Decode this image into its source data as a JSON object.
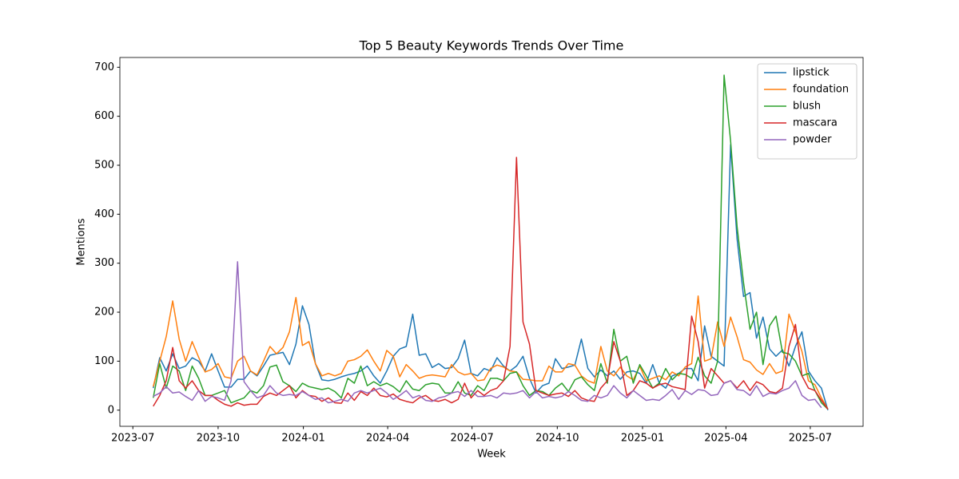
{
  "chart_data": {
    "type": "line",
    "title": "Top 5 Beauty Keywords Trends Over Time",
    "x_label": "Week",
    "y_label": "Mentions",
    "x": [
      "2023-07-23",
      "2023-07-30",
      "2023-08-06",
      "2023-08-13",
      "2023-08-20",
      "2023-08-27",
      "2023-09-03",
      "2023-09-10",
      "2023-09-17",
      "2023-09-24",
      "2023-10-01",
      "2023-10-08",
      "2023-10-15",
      "2023-10-22",
      "2023-10-29",
      "2023-11-05",
      "2023-11-12",
      "2023-11-19",
      "2023-11-26",
      "2023-12-03",
      "2023-12-10",
      "2023-12-17",
      "2023-12-24",
      "2023-12-31",
      "2024-01-07",
      "2024-01-14",
      "2024-01-21",
      "2024-01-28",
      "2024-02-04",
      "2024-02-11",
      "2024-02-18",
      "2024-02-25",
      "2024-03-03",
      "2024-03-10",
      "2024-03-17",
      "2024-03-24",
      "2024-03-31",
      "2024-04-07",
      "2024-04-14",
      "2024-04-21",
      "2024-04-28",
      "2024-05-05",
      "2024-05-12",
      "2024-05-19",
      "2024-05-26",
      "2024-06-02",
      "2024-06-09",
      "2024-06-16",
      "2024-06-23",
      "2024-06-30",
      "2024-07-07",
      "2024-07-14",
      "2024-07-21",
      "2024-07-28",
      "2024-08-04",
      "2024-08-11",
      "2024-08-18",
      "2024-08-25",
      "2024-09-01",
      "2024-09-08",
      "2024-09-15",
      "2024-09-22",
      "2024-09-29",
      "2024-10-06",
      "2024-10-13",
      "2024-10-20",
      "2024-10-27",
      "2024-11-03",
      "2024-11-10",
      "2024-11-17",
      "2024-11-24",
      "2024-12-01",
      "2024-12-08",
      "2024-12-15",
      "2024-12-22",
      "2024-12-29",
      "2025-01-05",
      "2025-01-12",
      "2025-01-19",
      "2025-01-26",
      "2025-02-02",
      "2025-02-09",
      "2025-02-16",
      "2025-02-23",
      "2025-03-02",
      "2025-03-09",
      "2025-03-16",
      "2025-03-23",
      "2025-03-30",
      "2025-04-06",
      "2025-04-13",
      "2025-04-20",
      "2025-04-27",
      "2025-05-04",
      "2025-05-11",
      "2025-05-18",
      "2025-05-25",
      "2025-06-01",
      "2025-06-08",
      "2025-06-15",
      "2025-06-22",
      "2025-06-29",
      "2025-07-06",
      "2025-07-13",
      "2025-07-20"
    ],
    "series": [
      {
        "name": "lipstick",
        "color": "#1f77b4",
        "values": [
          45,
          107,
          80,
          115,
          85,
          90,
          107,
          100,
          80,
          115,
          80,
          47,
          47,
          63,
          63,
          80,
          70,
          90,
          112,
          115,
          118,
          93,
          135,
          213,
          175,
          95,
          62,
          60,
          63,
          68,
          72,
          75,
          80,
          90,
          70,
          55,
          80,
          110,
          125,
          130,
          196,
          112,
          115,
          87,
          95,
          85,
          87,
          105,
          143,
          75,
          70,
          85,
          80,
          107,
          90,
          80,
          90,
          110,
          65,
          35,
          50,
          55,
          105,
          85,
          88,
          92,
          145,
          85,
          68,
          82,
          70,
          80,
          63,
          78,
          80,
          75,
          55,
          93,
          55,
          45,
          70,
          75,
          85,
          85,
          60,
          172,
          110,
          100,
          90,
          542,
          350,
          232,
          240,
          147,
          190,
          125,
          110,
          123,
          90,
          130,
          160,
          80,
          60,
          45,
          0
        ]
      },
      {
        "name": "foundation",
        "color": "#ff7f0e",
        "values": [
          48,
          100,
          150,
          223,
          145,
          100,
          140,
          108,
          78,
          83,
          95,
          68,
          65,
          100,
          110,
          80,
          72,
          100,
          130,
          115,
          128,
          160,
          230,
          132,
          140,
          95,
          70,
          75,
          70,
          75,
          100,
          103,
          110,
          123,
          100,
          80,
          122,
          110,
          68,
          93,
          80,
          65,
          70,
          72,
          70,
          68,
          93,
          78,
          72,
          75,
          60,
          62,
          85,
          92,
          88,
          80,
          78,
          63,
          62,
          60,
          60,
          90,
          78,
          78,
          95,
          92,
          70,
          60,
          55,
          130,
          80,
          70,
          88,
          70,
          62,
          90,
          60,
          65,
          70,
          62,
          78,
          70,
          88,
          95,
          233,
          100,
          105,
          180,
          130,
          190,
          150,
          103,
          98,
          82,
          73,
          95,
          75,
          80,
          196,
          160,
          120,
          60,
          52,
          25,
          2
        ]
      },
      {
        "name": "blush",
        "color": "#2ca02c",
        "values": [
          25,
          95,
          45,
          90,
          80,
          40,
          90,
          65,
          30,
          30,
          35,
          40,
          15,
          20,
          25,
          40,
          35,
          50,
          88,
          92,
          58,
          50,
          38,
          55,
          48,
          45,
          42,
          45,
          38,
          25,
          65,
          55,
          90,
          50,
          58,
          50,
          55,
          48,
          37,
          60,
          43,
          40,
          52,
          55,
          53,
          35,
          35,
          58,
          35,
          30,
          50,
          40,
          65,
          65,
          60,
          75,
          78,
          50,
          30,
          40,
          38,
          30,
          45,
          55,
          38,
          62,
          68,
          52,
          40,
          95,
          55,
          165,
          100,
          110,
          55,
          93,
          70,
          45,
          55,
          85,
          62,
          75,
          73,
          65,
          108,
          70,
          55,
          100,
          684,
          550,
          375,
          260,
          165,
          200,
          93,
          172,
          192,
          118,
          115,
          100,
          70,
          75,
          40,
          15,
          2
        ]
      },
      {
        "name": "mascara",
        "color": "#d62728",
        "values": [
          8,
          30,
          60,
          128,
          60,
          45,
          60,
          40,
          30,
          30,
          20,
          12,
          8,
          15,
          10,
          12,
          12,
          28,
          35,
          30,
          40,
          50,
          25,
          40,
          30,
          28,
          18,
          25,
          15,
          14,
          35,
          20,
          38,
          30,
          45,
          30,
          27,
          33,
          22,
          18,
          15,
          25,
          30,
          20,
          18,
          22,
          15,
          22,
          55,
          25,
          40,
          30,
          40,
          45,
          60,
          130,
          516,
          180,
          135,
          40,
          35,
          30,
          33,
          35,
          28,
          40,
          25,
          20,
          18,
          45,
          60,
          140,
          100,
          30,
          40,
          60,
          55,
          45,
          52,
          55,
          48,
          45,
          42,
          192,
          140,
          45,
          85,
          70,
          55,
          60,
          45,
          60,
          40,
          58,
          52,
          38,
          35,
          45,
          130,
          175,
          70,
          45,
          40,
          20,
          2
        ]
      },
      {
        "name": "powder",
        "color": "#9467bd",
        "values": [
          28,
          35,
          48,
          35,
          37,
          28,
          20,
          40,
          18,
          28,
          25,
          20,
          60,
          303,
          58,
          40,
          25,
          30,
          50,
          35,
          30,
          32,
          30,
          38,
          30,
          22,
          25,
          15,
          18,
          22,
          18,
          35,
          40,
          35,
          40,
          45,
          35,
          22,
          30,
          40,
          25,
          30,
          20,
          18,
          25,
          28,
          35,
          38,
          28,
          40,
          28,
          28,
          30,
          25,
          35,
          33,
          35,
          40,
          25,
          38,
          25,
          28,
          25,
          28,
          38,
          30,
          20,
          18,
          30,
          25,
          30,
          50,
          35,
          25,
          40,
          30,
          20,
          22,
          20,
          30,
          42,
          22,
          40,
          32,
          42,
          40,
          30,
          32,
          55,
          60,
          42,
          40,
          30,
          50,
          28,
          35,
          33,
          40,
          45,
          60,
          30,
          20,
          22,
          5,
          null
        ]
      }
    ],
    "xlim": [
      "2023-06-17",
      "2025-08-27"
    ],
    "xticks": [
      {
        "value": "2023-07-01",
        "label": "2023-07"
      },
      {
        "value": "2023-10-01",
        "label": "2023-10"
      },
      {
        "value": "2024-01-01",
        "label": "2024-01"
      },
      {
        "value": "2024-04-01",
        "label": "2024-04"
      },
      {
        "value": "2024-07-01",
        "label": "2024-07"
      },
      {
        "value": "2024-10-01",
        "label": "2024-10"
      },
      {
        "value": "2025-01-01",
        "label": "2025-01"
      },
      {
        "value": "2025-04-01",
        "label": "2025-04"
      },
      {
        "value": "2025-07-01",
        "label": "2025-07"
      }
    ],
    "ylim": [
      -33,
      720
    ],
    "yticks": [
      0,
      100,
      200,
      300,
      400,
      500,
      600,
      700
    ],
    "grid": false,
    "legend": "upper right"
  }
}
